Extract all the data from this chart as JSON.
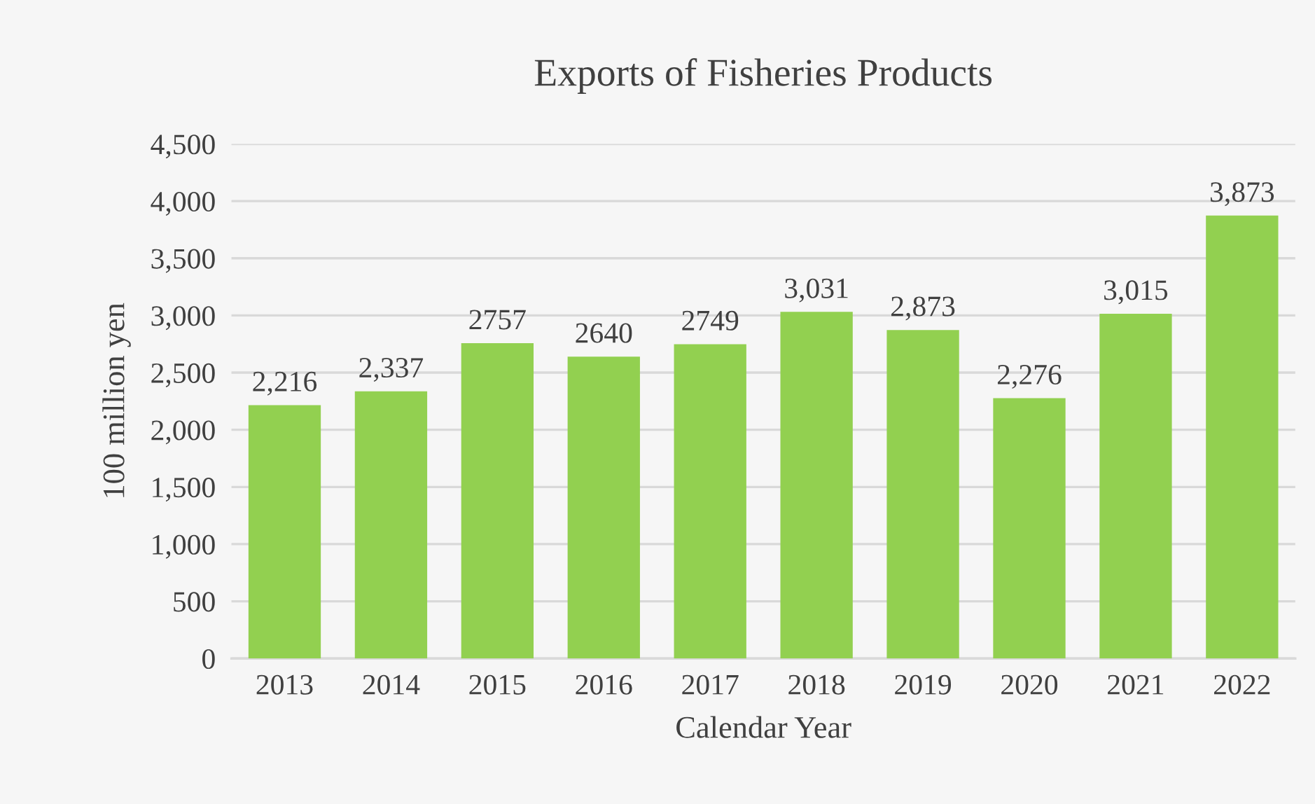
{
  "chart_data": {
    "type": "bar",
    "title": "Exports of Fisheries Products",
    "xlabel": "Calendar Year",
    "ylabel": "100 million yen",
    "categories": [
      "2013",
      "2014",
      "2015",
      "2016",
      "2017",
      "2018",
      "2019",
      "2020",
      "2021",
      "2022"
    ],
    "values": [
      2216,
      2337,
      2757,
      2640,
      2749,
      3031,
      2873,
      2276,
      3015,
      3873
    ],
    "value_labels": [
      "2,216",
      "2,337",
      "2757",
      "2640",
      "2749",
      "3,031",
      "2,873",
      "2,276",
      "3,015",
      "3,873"
    ],
    "color": "#92d050",
    "ylim": [
      0,
      4500
    ],
    "yticks": [
      {
        "value": 0,
        "label": "0"
      },
      {
        "value": 500,
        "label": "500"
      },
      {
        "value": 1000,
        "label": "1,000"
      },
      {
        "value": 1500,
        "label": "1,500"
      },
      {
        "value": 2000,
        "label": "2,000"
      },
      {
        "value": 2500,
        "label": "2,500"
      },
      {
        "value": 3000,
        "label": "3,000"
      },
      {
        "value": 3500,
        "label": "3,500"
      },
      {
        "value": 4000,
        "label": "4,000"
      },
      {
        "value": 4500,
        "label": "4,500"
      }
    ],
    "grid": "y"
  }
}
